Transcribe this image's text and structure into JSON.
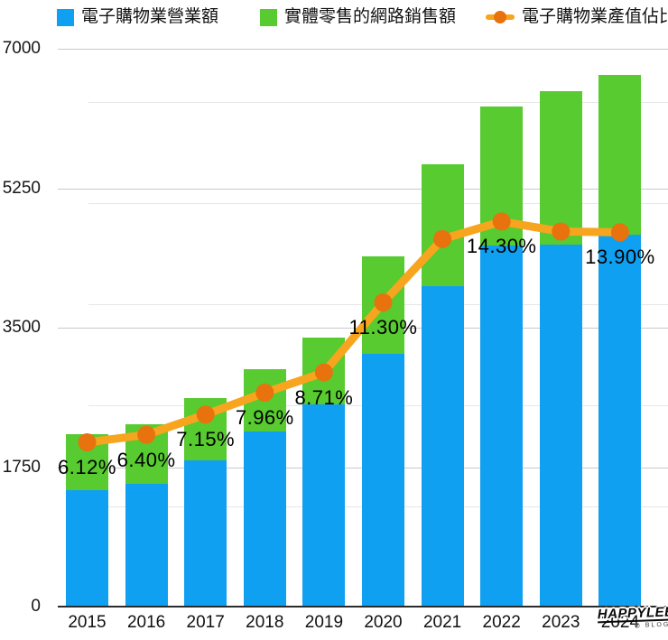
{
  "chart_data": {
    "type": "bar",
    "subtype": "stacked-bars-with-line-overlay",
    "title": "",
    "categories": [
      "2015",
      "2016",
      "2017",
      "2018",
      "2019",
      "2020",
      "2021",
      "2022",
      "2023",
      "2024"
    ],
    "series": [
      {
        "name": "電子購物業營業額",
        "type": "bar",
        "color": "#0FA0F2",
        "values": [
          1460,
          1540,
          1830,
          2195,
          2535,
          3170,
          4020,
          4530,
          4540,
          4665
        ]
      },
      {
        "name": "實體零售的網路銷售額",
        "type": "bar",
        "color": "#57CB2F",
        "values": [
          700,
          750,
          785,
          780,
          840,
          1220,
          1530,
          1740,
          1925,
          2005
        ]
      },
      {
        "name": "電子購物業產值佔比",
        "type": "line",
        "unit": "%",
        "color": "#F7A51E",
        "marker_color": "#E8720D",
        "values": [
          6.12,
          6.4,
          7.15,
          7.96,
          8.71,
          11.3,
          13.65,
          14.3,
          13.93,
          13.9
        ],
        "point_labels": [
          "6.12%",
          "6.40%",
          "7.15%",
          "7.96%",
          "8.71%",
          "11.30%",
          "",
          "14.30%",
          "",
          "13.90%"
        ]
      }
    ],
    "y_axis": {
      "min": 0,
      "max": 7000,
      "tick_values": [
        0,
        1750,
        3500,
        5250,
        7000
      ],
      "tick_labels": [
        "0",
        "1750",
        "3500",
        "5250",
        "7000"
      ]
    },
    "y2_axis": {
      "visible": false,
      "min": 0,
      "unit": "%"
    },
    "legend_position": "top",
    "grid": true,
    "stacked": true
  },
  "watermark": {
    "text": "HAPPYLEE",
    "sub": "◎ BLOG"
  }
}
